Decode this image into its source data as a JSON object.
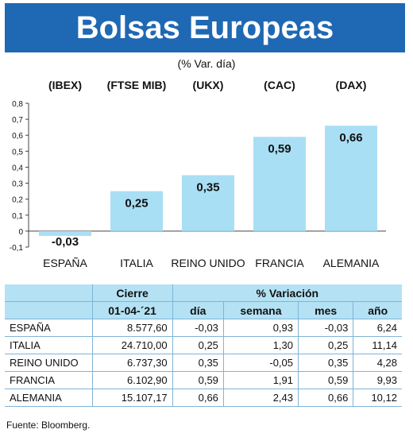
{
  "header": {
    "title": "Bolsas Europeas",
    "subtitle": "(% Var. día)"
  },
  "colors": {
    "title_bg": "#1f68b4",
    "bar": "#a9dff4",
    "table_header_bg": "#b4e2f4",
    "rule": "#7fb4d6"
  },
  "chart_data": {
    "type": "bar",
    "index_labels": [
      "(IBEX)",
      "(FTSE MIB)",
      "(UKX)",
      "(CAC)",
      "(DAX)"
    ],
    "categories": [
      "ESPAÑA",
      "ITALIA",
      "REINO UNIDO",
      "FRANCIA",
      "ALEMANIA"
    ],
    "values": [
      -0.03,
      0.25,
      0.35,
      0.59,
      0.66
    ],
    "value_labels": [
      "-0,03",
      "0,25",
      "0,35",
      "0,59",
      "0,66"
    ],
    "ylim": [
      -0.1,
      0.8
    ],
    "yticks": [
      -0.1,
      0,
      0.1,
      0.2,
      0.3,
      0.4,
      0.5,
      0.6,
      0.7,
      0.8
    ],
    "ytick_labels": [
      "-0,1",
      "0",
      "0,1",
      "0,2",
      "0,3",
      "0,4",
      "0,5",
      "0,6",
      "0,7",
      "0,8"
    ],
    "grid": false
  },
  "table": {
    "group_headers": {
      "close": "Cierre",
      "variation": "% Variación"
    },
    "date": "01-04-´21",
    "columns": [
      "día",
      "semana",
      "mes",
      "año"
    ],
    "rows": [
      {
        "name": "ESPAÑA",
        "close": "8.577,60",
        "day": "-0,03",
        "week": "0,93",
        "month": "-0,03",
        "year": "6,24"
      },
      {
        "name": "ITALIA",
        "close": "24.710,00",
        "day": "0,25",
        "week": "1,30",
        "month": "0,25",
        "year": "11,14"
      },
      {
        "name": "REINO UNIDO",
        "close": "6.737,30",
        "day": "0,35",
        "week": "-0,05",
        "month": "0,35",
        "year": "4,28"
      },
      {
        "name": "FRANCIA",
        "close": "6.102,90",
        "day": "0,59",
        "week": "1,91",
        "month": "0,59",
        "year": "9,93"
      },
      {
        "name": "ALEMANIA",
        "close": "15.107,17",
        "day": "0,66",
        "week": "2,43",
        "month": "0,66",
        "year": "10,12"
      }
    ]
  },
  "footer": {
    "source": "Fuente: Bloomberg."
  }
}
